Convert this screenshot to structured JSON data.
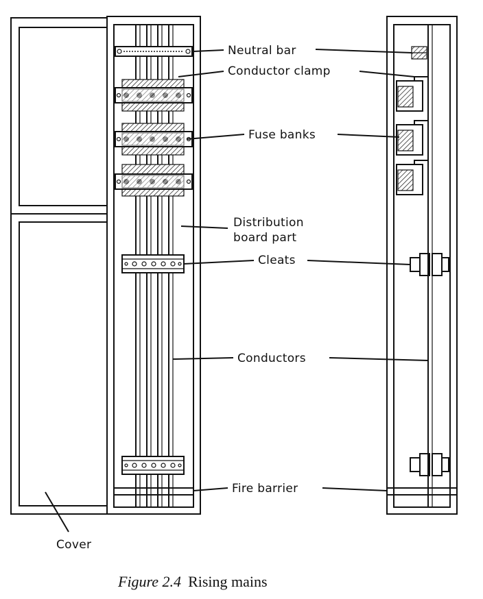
{
  "labels": {
    "neutral_bar": "Neutral bar",
    "conductor_clamp": "Conductor clamp",
    "fuse_banks": "Fuse banks",
    "distribution_line1": "Distribution",
    "distribution_line2": "board part",
    "cleats": "Cleats",
    "conductors": "Conductors",
    "fire_barrier": "Fire barrier",
    "cover": "Cover"
  },
  "caption": {
    "figure": "Figure 2.4",
    "title": "Rising mains"
  }
}
